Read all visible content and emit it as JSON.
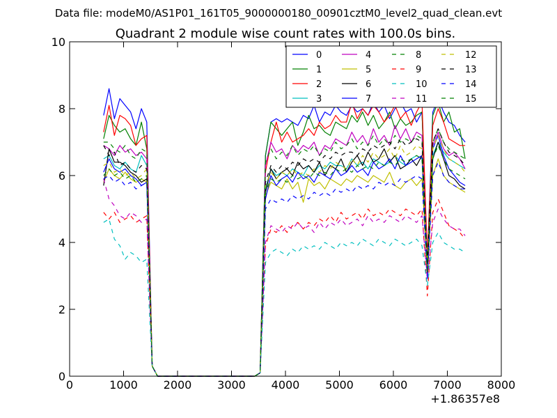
{
  "chart_data": {
    "type": "line",
    "suptitle": "Data file: modeM0/AS1P01_161T05_9000000180_00901cztM0_level2_quad_clean.evt",
    "title": "Quadrant 2 module wise count rates with 100.0s bins.",
    "xlabel": "",
    "ylabel": "",
    "xlim": [
      0,
      8000
    ],
    "ylim": [
      0,
      10
    ],
    "x_ticks": [
      0,
      1000,
      2000,
      3000,
      4000,
      5000,
      6000,
      7000,
      8000
    ],
    "y_ticks": [
      0,
      2,
      4,
      6,
      8,
      10
    ],
    "x_offset_label": "+1.86357e8",
    "grid": false,
    "legend": "top-right",
    "x": [
      630,
      730,
      830,
      930,
      1030,
      1130,
      1230,
      1330,
      1430,
      1530,
      1630,
      1730,
      1830,
      1930,
      2030,
      2130,
      2230,
      2330,
      2430,
      2530,
      2630,
      2730,
      2830,
      2930,
      3030,
      3130,
      3230,
      3330,
      3430,
      3530,
      3630,
      3730,
      3830,
      3930,
      4030,
      4130,
      4230,
      4330,
      4430,
      4530,
      4630,
      4730,
      4830,
      4930,
      5030,
      5130,
      5230,
      5330,
      5430,
      5530,
      5630,
      5730,
      5830,
      5930,
      6030,
      6130,
      6230,
      6330,
      6430,
      6530,
      6630,
      6730,
      6830,
      6930,
      7030,
      7130,
      7230,
      7330
    ],
    "series": [
      {
        "name": "0",
        "color": "#0000ff",
        "dash": "solid",
        "values": [
          7.8,
          8.6,
          7.7,
          8.3,
          8.1,
          7.9,
          7.4,
          8.0,
          7.6,
          0.3,
          0,
          0,
          0,
          0,
          0,
          0,
          0,
          0,
          0,
          0,
          0,
          0,
          0,
          0,
          0,
          0,
          0,
          0,
          0,
          0.1,
          6.6,
          7.6,
          7.7,
          7.6,
          7.7,
          7.6,
          7.5,
          7.8,
          7.7,
          8.1,
          7.6,
          7.9,
          7.8,
          8.1,
          7.9,
          7.8,
          8.1,
          7.9,
          8.0,
          7.8,
          8.2,
          7.9,
          8.1,
          7.7,
          8.0,
          8.2,
          7.9,
          8.0,
          7.6,
          7.9,
          3.5,
          7.9,
          8.3,
          7.9,
          7.6,
          7.5,
          7.2,
          7.0
        ]
      },
      {
        "name": "1",
        "color": "#008000",
        "dash": "solid",
        "values": [
          7.1,
          7.8,
          7.5,
          7.3,
          7.4,
          7.1,
          6.9,
          7.6,
          6.8,
          0.3,
          0,
          0,
          0,
          0,
          0,
          0,
          0,
          0,
          0,
          0,
          0,
          0,
          0,
          0,
          0,
          0,
          0,
          0,
          0,
          0.1,
          6.6,
          7.6,
          7.4,
          7.2,
          7.4,
          7.6,
          6.9,
          7.3,
          7.8,
          7.4,
          7.5,
          7.3,
          7.2,
          7.6,
          7.5,
          7.4,
          7.8,
          7.6,
          7.9,
          7.5,
          7.8,
          7.4,
          7.6,
          7.9,
          7.4,
          7.7,
          7.5,
          7.6,
          7.8,
          7.9,
          3.3,
          7.8,
          8.2,
          7.6,
          7.9,
          7.3,
          7.4,
          6.5
        ]
      },
      {
        "name": "2",
        "color": "#ff0000",
        "dash": "solid",
        "values": [
          7.3,
          8.1,
          7.2,
          7.8,
          7.7,
          7.5,
          6.9,
          7.1,
          7.2,
          0.3,
          0,
          0,
          0,
          0,
          0,
          0,
          0,
          0,
          0,
          0,
          0,
          0,
          0,
          0,
          0,
          0,
          0,
          0,
          0,
          0.1,
          6.1,
          7.0,
          7.6,
          7.0,
          7.3,
          7.0,
          7.1,
          7.2,
          7.4,
          7.2,
          7.6,
          7.4,
          7.5,
          7.8,
          7.6,
          7.6,
          8.2,
          7.7,
          8.0,
          7.8,
          8.1,
          7.9,
          7.6,
          7.8,
          8.1,
          7.7,
          7.9,
          7.5,
          7.9,
          8.2,
          3.6,
          7.5,
          8.0,
          7.6,
          7.1,
          7.0,
          6.9,
          6.9
        ]
      },
      {
        "name": "3",
        "color": "#00bfbf",
        "dash": "solid",
        "values": [
          6.5,
          6.6,
          6.3,
          6.2,
          6.4,
          6.2,
          6.1,
          6.6,
          6.3,
          0.3,
          0,
          0,
          0,
          0,
          0,
          0,
          0,
          0,
          0,
          0,
          0,
          0,
          0,
          0,
          0,
          0,
          0,
          0,
          0,
          0.1,
          5.6,
          6.2,
          6.0,
          6.1,
          6.0,
          6.2,
          6.1,
          6.0,
          6.3,
          6.1,
          6.3,
          6.2,
          6.4,
          6.3,
          6.3,
          6.2,
          6.5,
          6.3,
          6.4,
          6.2,
          6.5,
          6.4,
          6.3,
          6.4,
          6.6,
          6.4,
          6.3,
          6.5,
          6.6,
          6.5,
          3.3,
          6.6,
          7.0,
          6.7,
          6.5,
          6.4,
          6.3,
          6.2
        ]
      },
      {
        "name": "4",
        "color": "#bf00bf",
        "dash": "solid",
        "values": [
          6.9,
          6.8,
          6.6,
          6.9,
          6.7,
          6.8,
          6.6,
          6.7,
          6.5,
          0.3,
          0,
          0,
          0,
          0,
          0,
          0,
          0,
          0,
          0,
          0,
          0,
          0,
          0,
          0,
          0,
          0,
          0,
          0,
          0,
          0.1,
          6.3,
          7.0,
          6.7,
          6.8,
          6.5,
          6.9,
          6.7,
          6.9,
          6.8,
          7.0,
          6.6,
          6.9,
          6.8,
          7.1,
          7.0,
          6.9,
          7.3,
          7.0,
          7.2,
          6.9,
          7.4,
          7.0,
          7.2,
          6.9,
          7.5,
          7.1,
          7.4,
          7.0,
          7.3,
          7.2,
          3.4,
          6.9,
          7.3,
          6.8,
          6.6,
          6.7,
          6.5,
          6.2
        ]
      },
      {
        "name": "5",
        "color": "#bfbf00",
        "dash": "solid",
        "values": [
          5.8,
          6.2,
          6.0,
          5.9,
          6.1,
          5.9,
          5.8,
          5.9,
          5.8,
          0.3,
          0,
          0,
          0,
          0,
          0,
          0,
          0,
          0,
          0,
          0,
          0,
          0,
          0,
          0,
          0,
          0,
          0,
          0,
          0,
          0.1,
          5.4,
          5.8,
          5.7,
          5.6,
          5.9,
          5.6,
          5.8,
          5.2,
          5.9,
          5.7,
          5.8,
          5.6,
          5.9,
          5.8,
          5.7,
          5.9,
          5.8,
          6.0,
          5.9,
          5.8,
          6.0,
          5.9,
          5.8,
          6.1,
          5.7,
          5.6,
          5.8,
          5.9,
          5.7,
          5.9,
          3.1,
          6.0,
          6.5,
          6.0,
          5.8,
          5.7,
          5.6,
          5.5
        ]
      },
      {
        "name": "6",
        "color": "#000000",
        "dash": "solid",
        "values": [
          5.7,
          6.8,
          6.4,
          6.4,
          6.3,
          6.1,
          6.0,
          5.8,
          5.9,
          0.3,
          0,
          0,
          0,
          0,
          0,
          0,
          0,
          0,
          0,
          0,
          0,
          0,
          0,
          0,
          0,
          0,
          0,
          0,
          0,
          0.1,
          5.5,
          6.2,
          5.9,
          6.1,
          6.2,
          6.0,
          6.4,
          6.2,
          6.3,
          6.1,
          6.4,
          6.0,
          6.3,
          6.2,
          6.5,
          6.1,
          6.4,
          6.6,
          6.3,
          6.7,
          6.4,
          6.5,
          6.8,
          6.4,
          6.6,
          6.2,
          6.3,
          6.5,
          6.3,
          6.6,
          3.0,
          6.5,
          7.0,
          6.5,
          6.0,
          5.9,
          5.7,
          5.6
        ]
      },
      {
        "name": "7",
        "color": "#0000ff",
        "dash": "solid",
        "values": [
          6.1,
          6.5,
          6.2,
          6.1,
          6.2,
          6.0,
          5.9,
          5.7,
          5.8,
          0.3,
          0,
          0,
          0,
          0,
          0,
          0,
          0,
          0,
          0,
          0,
          0,
          0,
          0,
          0,
          0,
          0,
          0,
          0,
          0,
          0.1,
          5.3,
          6.0,
          5.7,
          5.9,
          6.0,
          5.8,
          6.1,
          5.9,
          6.0,
          5.8,
          6.1,
          6.0,
          5.9,
          6.2,
          6.0,
          6.1,
          6.3,
          6.1,
          6.2,
          6.0,
          6.4,
          6.2,
          6.3,
          6.5,
          6.2,
          6.6,
          6.3,
          6.4,
          6.5,
          6.6,
          3.2,
          6.8,
          7.2,
          6.6,
          6.2,
          6.0,
          5.8,
          5.7
        ]
      },
      {
        "name": "8",
        "color": "#008000",
        "dash": "dashed",
        "values": [
          7.0,
          7.0,
          6.8,
          6.7,
          6.9,
          6.6,
          6.5,
          6.8,
          6.7,
          0.3,
          0,
          0,
          0,
          0,
          0,
          0,
          0,
          0,
          0,
          0,
          0,
          0,
          0,
          0,
          0,
          0,
          0,
          0,
          0,
          0.1,
          6.4,
          6.8,
          6.5,
          6.7,
          6.6,
          6.9,
          6.6,
          6.8,
          6.7,
          6.9,
          6.6,
          6.8,
          6.7,
          7.0,
          6.8,
          6.9,
          7.1,
          6.8,
          7.0,
          6.9,
          7.2,
          6.9,
          7.1,
          6.9,
          7.2,
          7.0,
          7.1,
          7.0,
          7.2,
          7.1,
          3.4,
          7.0,
          7.4,
          7.0,
          6.8,
          6.7,
          6.6,
          6.5
        ]
      },
      {
        "name": "9",
        "color": "#ff0000",
        "dash": "dashed",
        "values": [
          4.9,
          4.7,
          4.9,
          4.6,
          4.7,
          4.8,
          4.6,
          4.7,
          4.8,
          0.3,
          0,
          0,
          0,
          0,
          0,
          0,
          0,
          0,
          0,
          0,
          0,
          0,
          0,
          0,
          0,
          0,
          0,
          0,
          0,
          0.1,
          3.9,
          4.4,
          4.3,
          4.5,
          4.3,
          4.5,
          4.6,
          4.4,
          4.6,
          4.5,
          4.7,
          4.6,
          4.8,
          4.6,
          4.9,
          4.7,
          4.8,
          4.9,
          4.7,
          5.0,
          4.8,
          4.9,
          4.8,
          5.0,
          4.9,
          4.8,
          5.0,
          4.9,
          4.8,
          5.0,
          2.4,
          4.9,
          5.3,
          4.9,
          4.5,
          4.4,
          4.3,
          4.1
        ]
      },
      {
        "name": "10",
        "color": "#00bfbf",
        "dash": "dashed",
        "values": [
          4.6,
          4.7,
          4.1,
          3.9,
          3.5,
          3.7,
          3.6,
          3.4,
          3.5,
          0.3,
          0,
          0,
          0,
          0,
          0,
          0,
          0,
          0,
          0,
          0,
          0,
          0,
          0,
          0,
          0,
          0,
          0,
          0,
          0,
          0.1,
          3.4,
          3.7,
          3.8,
          3.7,
          3.6,
          3.8,
          3.7,
          3.9,
          3.8,
          3.9,
          3.8,
          4.0,
          3.9,
          3.8,
          4.0,
          3.9,
          4.0,
          3.9,
          4.1,
          4.0,
          3.9,
          4.1,
          4.0,
          3.9,
          4.1,
          4.0,
          3.9,
          4.0,
          4.1,
          3.9,
          2.7,
          4.0,
          4.3,
          4.0,
          3.9,
          3.8,
          3.8,
          3.7
        ]
      },
      {
        "name": "11",
        "color": "#bf00bf",
        "dash": "dashed",
        "values": [
          5.9,
          5.3,
          5.1,
          4.8,
          4.7,
          4.9,
          4.8,
          4.6,
          4.7,
          0.3,
          0,
          0,
          0,
          0,
          0,
          0,
          0,
          0,
          0,
          0,
          0,
          0,
          0,
          0,
          0,
          0,
          0,
          0,
          0,
          0.1,
          4.0,
          4.5,
          4.4,
          4.3,
          4.5,
          4.4,
          4.6,
          4.4,
          4.5,
          4.3,
          4.6,
          4.4,
          4.6,
          4.5,
          4.7,
          4.5,
          4.6,
          4.7,
          4.5,
          4.8,
          4.6,
          4.7,
          4.6,
          4.8,
          4.7,
          4.6,
          4.8,
          4.7,
          4.6,
          4.8,
          2.9,
          4.6,
          5.0,
          4.7,
          4.5,
          4.4,
          4.4,
          4.2
        ]
      },
      {
        "name": "12",
        "color": "#bfbf00",
        "dash": "dashed",
        "values": [
          6.3,
          6.4,
          6.1,
          6.2,
          6.0,
          6.1,
          5.9,
          6.0,
          6.2,
          0.3,
          0,
          0,
          0,
          0,
          0,
          0,
          0,
          0,
          0,
          0,
          0,
          0,
          0,
          0,
          0,
          0,
          0,
          0,
          0,
          0.1,
          5.7,
          6.1,
          5.9,
          6.1,
          6.0,
          6.2,
          6.0,
          6.1,
          6.0,
          6.2,
          6.1,
          6.3,
          6.2,
          6.4,
          6.3,
          6.2,
          6.5,
          6.3,
          6.6,
          6.4,
          6.7,
          6.5,
          6.6,
          6.8,
          6.5,
          6.9,
          6.6,
          6.7,
          6.9,
          6.8,
          3.2,
          6.8,
          7.2,
          6.8,
          6.5,
          6.4,
          6.3,
          6.1
        ]
      },
      {
        "name": "13",
        "color": "#000000",
        "dash": "dashed",
        "values": [
          6.9,
          6.6,
          6.7,
          6.3,
          6.4,
          6.2,
          6.1,
          6.3,
          6.2,
          0.3,
          0,
          0,
          0,
          0,
          0,
          0,
          0,
          0,
          0,
          0,
          0,
          0,
          0,
          0,
          0,
          0,
          0,
          0,
          0,
          0.1,
          5.8,
          6.3,
          6.1,
          6.3,
          6.2,
          6.4,
          6.3,
          6.5,
          6.4,
          6.5,
          6.4,
          6.6,
          6.5,
          6.7,
          6.6,
          6.7,
          6.7,
          6.6,
          6.8,
          6.7,
          6.9,
          6.8,
          6.9,
          7.0,
          6.8,
          7.1,
          6.9,
          7.0,
          7.1,
          7.0,
          3.3,
          7.0,
          7.4,
          7.0,
          6.7,
          6.6,
          6.5,
          6.3
        ]
      },
      {
        "name": "14",
        "color": "#0000ff",
        "dash": "dashed",
        "values": [
          5.9,
          6.0,
          5.8,
          5.9,
          5.7,
          5.8,
          5.6,
          5.7,
          5.8,
          0.3,
          0,
          0,
          0,
          0,
          0,
          0,
          0,
          0,
          0,
          0,
          0,
          0,
          0,
          0,
          0,
          0,
          0,
          0,
          0,
          0.1,
          5.0,
          5.3,
          5.2,
          5.3,
          5.2,
          5.4,
          5.3,
          5.4,
          5.3,
          5.5,
          5.4,
          5.5,
          5.4,
          5.6,
          5.5,
          5.6,
          5.5,
          5.7,
          5.6,
          5.7,
          5.6,
          5.8,
          5.7,
          5.8,
          5.7,
          5.9,
          5.8,
          5.9,
          6.0,
          5.9,
          2.9,
          6.0,
          6.4,
          6.0,
          5.8,
          5.7,
          5.6,
          5.6
        ]
      },
      {
        "name": "15",
        "color": "#008000",
        "dash": "dashed",
        "values": [
          6.0,
          6.2,
          6.0,
          6.1,
          5.9,
          6.0,
          5.8,
          5.9,
          6.0,
          0.3,
          0,
          0,
          0,
          0,
          0,
          0,
          0,
          0,
          0,
          0,
          0,
          0,
          0,
          0,
          0,
          0,
          0,
          0,
          0,
          0.1,
          5.5,
          5.9,
          5.8,
          5.9,
          5.8,
          6.0,
          5.9,
          6.0,
          5.9,
          6.1,
          6.0,
          6.1,
          6.0,
          6.2,
          6.1,
          6.2,
          6.1,
          6.3,
          6.2,
          6.3,
          6.2,
          6.4,
          6.3,
          6.4,
          6.3,
          6.5,
          6.4,
          6.5,
          6.6,
          6.5,
          3.1,
          6.5,
          6.9,
          6.5,
          6.2,
          6.1,
          6.0,
          5.9
        ]
      }
    ]
  }
}
